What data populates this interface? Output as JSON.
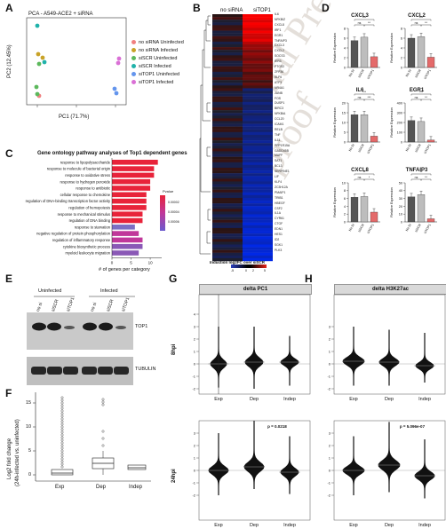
{
  "panels": {
    "A": "A",
    "B": "B",
    "C": "C",
    "D": "D",
    "E": "E",
    "F": "F",
    "G": "G",
    "H": "H"
  },
  "watermark": "Journal Pre-proof",
  "panelA": {
    "title": "PCA - A549-ACE2 + siRNA",
    "xlabel": "PC1 (71.7%)",
    "ylabel": "PC2 (12.45%)",
    "legend": [
      {
        "label": "no siRNA Uninfected",
        "color": "#f08080"
      },
      {
        "label": "no siRNA Infected",
        "color": "#c9a227"
      },
      {
        "label": "siSCR Uninfected",
        "color": "#5cb85c"
      },
      {
        "label": "siSCR Infected",
        "color": "#20b2aa"
      },
      {
        "label": "siTOP1 Uninfected",
        "color": "#6495ed"
      },
      {
        "label": "siTOP1 Infected",
        "color": "#da70d6"
      }
    ]
  },
  "panelB": {
    "col1": "no siRNA",
    "col2": "siTOP1",
    "scale_label": "Induction log2FC over siSCR",
    "scale_ticks": [
      "-5",
      "0",
      "2",
      "5"
    ],
    "genes": [
      "IL6",
      "NFKBIZ",
      "CXCL8",
      "IRF1",
      "EGR1",
      "TNFAIP3",
      "CXCL3",
      "CXCL2",
      "SOCS3",
      "IER3",
      "PTGS2",
      "ZFP36",
      "KLF6",
      "ATF3",
      "NR4A1",
      "JUNB",
      "FOS",
      "DUSP1",
      "BIRC3",
      "NFKBIA",
      "CCL20",
      "ICAM1",
      "RELB",
      "TNF",
      "IL11",
      "PPP1R15A",
      "GADD45B",
      "MAFF",
      "SAT1",
      "BCL3",
      "SERPINE1",
      "LIF",
      "KLF4",
      "ZC3H12A",
      "PMAIP1",
      "TRIB1",
      "HBEGF",
      "CSF2",
      "IL1A",
      "CYR61",
      "CTGF",
      "EDN1",
      "HES1",
      "ID2",
      "SGK1",
      "PLK3"
    ]
  },
  "panelC": {
    "title": "Gene ontology pathway analyses of Top1 dependent genes",
    "xlabel": "# of genes per category",
    "legend_title": "Pvalue",
    "legend_ticks": [
      "0.00002",
      "0.00004",
      "0.00006"
    ],
    "categories": [
      "response to lipopolysaccharide",
      "response to molecule of bacterial origin",
      "response to oxidative stress",
      "response to hydrogen peroxide",
      "response to antibiotic",
      "cellular response to chemokine",
      "regulation of DNA-binding transcription factor activity",
      "regulation of hemopoiesis",
      "response to mechanical stimulus",
      "regulation of DNA binding",
      "response to starvation",
      "negative regulation of protein phosphorylation",
      "regulation of inflammatory response",
      "cytokine biosynthetic process",
      "myeloid leukocyte migration"
    ],
    "xticks": [
      "0",
      "5",
      "10"
    ]
  },
  "chart_data": {
    "type": "bar",
    "title": "Gene ontology pathway analyses of Top1 dependent genes",
    "xlabel": "# of genes per category",
    "categories": [
      "response to lipopolysaccharide",
      "response to molecule of bacterial origin",
      "response to oxidative stress",
      "response to hydrogen peroxide",
      "response to antibiotic",
      "cellular response to chemokine",
      "regulation of DNA-binding transcription factor activity",
      "regulation of hemopoiesis",
      "response to mechanical stimulus",
      "regulation of DNA binding",
      "response to starvation",
      "negative regulation of protein phosphorylation",
      "regulation of inflammatory response",
      "cytokine biosynthetic process",
      "myeloid leukocyte migration"
    ],
    "values": [
      12,
      11,
      11,
      10,
      10,
      9,
      9,
      9,
      8,
      8,
      6,
      7,
      8,
      8,
      7
    ],
    "colors": [
      "#e8233a",
      "#e8233a",
      "#e8233a",
      "#e8233a",
      "#e8233a",
      "#e8233a",
      "#e8233a",
      "#e8233a",
      "#e8233a",
      "#e8233a",
      "#7c6fc4",
      "#c0379a",
      "#c0379a",
      "#8a58b6",
      "#8a58b6"
    ],
    "xlim": [
      0,
      13
    ]
  },
  "panelD": {
    "ylabel": "Relative Expression",
    "xlabels": [
      "No SI",
      "siSCR",
      "siTOP1"
    ],
    "charts": [
      {
        "title": "CXCL3",
        "values": [
          5.5,
          6.2,
          2.2
        ],
        "ymax": 8,
        "ticks": [
          "0",
          "2",
          "4",
          "6",
          "8"
        ],
        "sig": [
          "***",
          "ns",
          "**"
        ]
      },
      {
        "title": "CXCL2",
        "values": [
          6.0,
          6.3,
          2.1
        ],
        "ymax": 8,
        "ticks": [
          "0",
          "2",
          "4",
          "6",
          "8"
        ],
        "sig": [
          "***",
          "ns",
          "**"
        ]
      },
      {
        "title": "IL6",
        "values": [
          14,
          14,
          3
        ],
        "ymax": 20,
        "ticks": [
          "0",
          "5",
          "10",
          "15",
          "20"
        ],
        "sig": [
          "***",
          "ns",
          "***"
        ]
      },
      {
        "title": "EGR1",
        "values": [
          220,
          210,
          20
        ],
        "ymax": 400,
        "ticks": [
          "0",
          "100",
          "200",
          "300",
          "400"
        ],
        "sig": [
          "***",
          "ns",
          "**"
        ]
      },
      {
        "title": "CXCL8",
        "values": [
          6.3,
          6.5,
          2.5
        ],
        "ymax": 10,
        "ticks": [
          "0",
          "2",
          "4",
          "6",
          "8",
          "10"
        ],
        "sig": [
          "**",
          "ns",
          "*"
        ]
      },
      {
        "title": "TNFAIP3",
        "values": [
          32,
          35,
          4
        ],
        "ymax": 50,
        "ticks": [
          "0",
          "10",
          "20",
          "30",
          "40",
          "50"
        ],
        "sig": [
          "**",
          "ns",
          "**"
        ]
      }
    ]
  },
  "panelE": {
    "uninfected": "Uninfected",
    "infected": "Infected",
    "lanes": [
      "no si",
      "siSCR",
      "siTOP1",
      "no si",
      "siSCR",
      "siTOP1"
    ],
    "band1": "TOP1",
    "band2": "TUBULIN"
  },
  "panelF": {
    "ylabel": "Log2 fold change",
    "ylabel2": "(24h-infected vs. uninfected)",
    "xlabels": [
      "Exp",
      "Dep",
      "Indep"
    ],
    "yticks": [
      "0",
      "5",
      "10",
      "15"
    ]
  },
  "panelG": {
    "header": "delta PC1",
    "row1": "8hpi",
    "row2": "24hpi",
    "xlabels": [
      "Exp",
      "Dep",
      "Indep"
    ],
    "pvalue": "p = 0.0218",
    "yticks_top": [
      "-2",
      "-1",
      "0",
      "1",
      "2",
      "3",
      "4"
    ],
    "yticks_bot": [
      "-2",
      "-1",
      "0",
      "1",
      "2",
      "3",
      "4"
    ]
  },
  "panelH": {
    "header": "delta H3K27ac",
    "xlabels": [
      "Exp",
      "Dep",
      "Indep"
    ],
    "pvalue": "p = 5.096e-07",
    "yticks_top": [
      "-2",
      "-1",
      "0",
      "1",
      "2",
      "3"
    ],
    "yticks_bot": [
      "-2",
      "-1",
      "0",
      "1",
      "2",
      "3"
    ]
  }
}
